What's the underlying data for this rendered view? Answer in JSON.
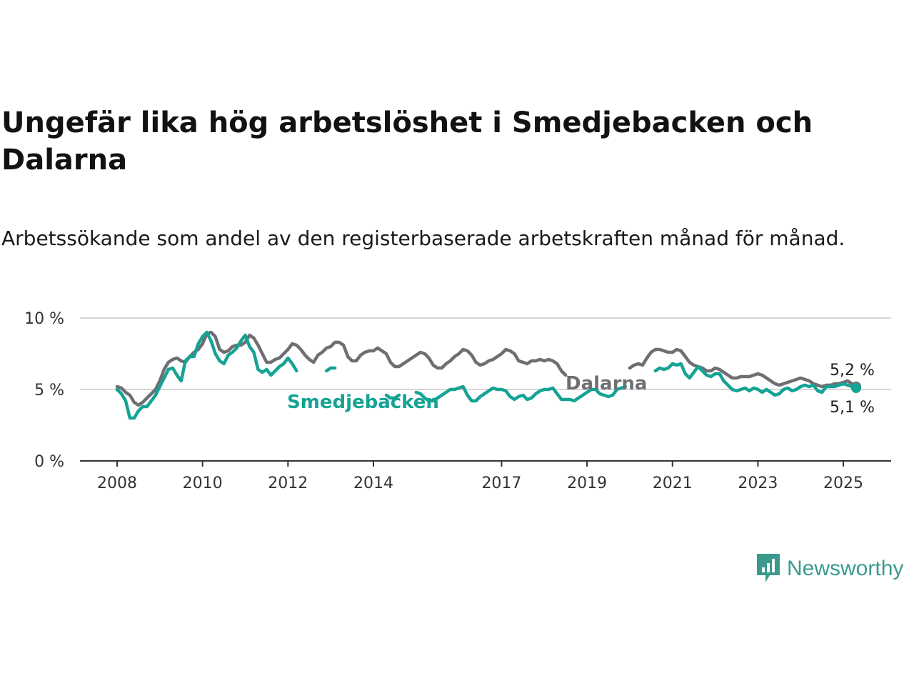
{
  "chart_data": {
    "type": "line",
    "title": "Ungefär lika hög arbetslöshet i Smedjebacken och Dalarna",
    "subtitle": "Arbetssökande som andel av den registerbaserade arbetskraften månad för månad.",
    "xlabel": "",
    "ylabel": "",
    "ylim": [
      0,
      10
    ],
    "yticks": [
      0,
      5,
      10
    ],
    "ytick_labels": [
      "0 %",
      "5 %",
      "10 %"
    ],
    "xticks": [
      2008,
      2010,
      2012,
      2014,
      2017,
      2019,
      2021,
      2023,
      2025
    ],
    "xtick_labels": [
      "2008",
      "2010",
      "2012",
      "2014",
      "2017",
      "2019",
      "2021",
      "2023",
      "2025"
    ],
    "xlim": [
      2008,
      2025.35
    ],
    "grid": true,
    "legend": "inline",
    "series": [
      {
        "name": "Dalarna",
        "color": "#6e6e73",
        "end_label": "5,2 %",
        "points": [
          [
            2008.0,
            5.2
          ],
          [
            2008.1,
            5.1
          ],
          [
            2008.2,
            4.8
          ],
          [
            2008.3,
            4.6
          ],
          [
            2008.4,
            4.1
          ],
          [
            2008.5,
            3.9
          ],
          [
            2008.6,
            4.1
          ],
          [
            2008.7,
            4.4
          ],
          [
            2008.8,
            4.7
          ],
          [
            2008.9,
            5.0
          ],
          [
            2009.0,
            5.6
          ],
          [
            2009.1,
            6.4
          ],
          [
            2009.2,
            6.9
          ],
          [
            2009.3,
            7.1
          ],
          [
            2009.4,
            7.2
          ],
          [
            2009.5,
            7.0
          ],
          [
            2009.6,
            6.9
          ],
          [
            2009.7,
            7.3
          ],
          [
            2009.8,
            7.6
          ],
          [
            2009.9,
            7.8
          ],
          [
            2010.0,
            8.2
          ],
          [
            2010.1,
            8.9
          ],
          [
            2010.2,
            9.0
          ],
          [
            2010.3,
            8.7
          ],
          [
            2010.4,
            7.8
          ],
          [
            2010.5,
            7.6
          ],
          [
            2010.6,
            7.7
          ],
          [
            2010.7,
            8.0
          ],
          [
            2010.8,
            8.1
          ],
          [
            2010.9,
            8.1
          ],
          [
            2011.0,
            8.3
          ],
          [
            2011.1,
            8.8
          ],
          [
            2011.2,
            8.6
          ],
          [
            2011.3,
            8.1
          ],
          [
            2011.4,
            7.5
          ],
          [
            2011.5,
            6.9
          ],
          [
            2011.6,
            6.9
          ],
          [
            2011.7,
            7.1
          ],
          [
            2011.8,
            7.2
          ],
          [
            2011.9,
            7.5
          ],
          [
            2012.0,
            7.8
          ],
          [
            2012.1,
            8.2
          ],
          [
            2012.2,
            8.1
          ],
          [
            2012.3,
            7.8
          ],
          [
            2012.4,
            7.4
          ],
          [
            2012.5,
            7.1
          ],
          [
            2012.6,
            6.9
          ],
          [
            2012.7,
            7.4
          ],
          [
            2012.8,
            7.6
          ],
          [
            2012.9,
            7.9
          ],
          [
            2013.0,
            8.0
          ],
          [
            2013.1,
            8.3
          ],
          [
            2013.2,
            8.3
          ],
          [
            2013.3,
            8.1
          ],
          [
            2013.4,
            7.3
          ],
          [
            2013.5,
            7.0
          ],
          [
            2013.6,
            7.0
          ],
          [
            2013.7,
            7.4
          ],
          [
            2013.8,
            7.6
          ],
          [
            2013.9,
            7.7
          ],
          [
            2014.0,
            7.7
          ],
          [
            2014.1,
            7.9
          ],
          [
            2014.2,
            7.7
          ],
          [
            2014.3,
            7.5
          ],
          [
            2014.4,
            6.9
          ],
          [
            2014.5,
            6.6
          ],
          [
            2014.6,
            6.6
          ],
          [
            2014.7,
            6.8
          ],
          [
            2014.8,
            7.0
          ],
          [
            2014.9,
            7.2
          ],
          [
            2015.0,
            7.4
          ],
          [
            2015.1,
            7.6
          ],
          [
            2015.2,
            7.5
          ],
          [
            2015.3,
            7.2
          ],
          [
            2015.4,
            6.7
          ],
          [
            2015.5,
            6.5
          ],
          [
            2015.6,
            6.5
          ],
          [
            2015.7,
            6.8
          ],
          [
            2015.8,
            7.0
          ],
          [
            2015.9,
            7.3
          ],
          [
            2016.0,
            7.5
          ],
          [
            2016.1,
            7.8
          ],
          [
            2016.2,
            7.7
          ],
          [
            2016.3,
            7.4
          ],
          [
            2016.4,
            6.9
          ],
          [
            2016.5,
            6.7
          ],
          [
            2016.6,
            6.8
          ],
          [
            2016.7,
            7.0
          ],
          [
            2016.8,
            7.1
          ],
          [
            2016.9,
            7.3
          ],
          [
            2017.0,
            7.5
          ],
          [
            2017.1,
            7.8
          ],
          [
            2017.2,
            7.7
          ],
          [
            2017.3,
            7.5
          ],
          [
            2017.4,
            7.0
          ],
          [
            2017.5,
            6.9
          ],
          [
            2017.6,
            6.8
          ],
          [
            2017.7,
            7.0
          ],
          [
            2017.8,
            7.0
          ],
          [
            2017.9,
            7.1
          ],
          [
            2018.0,
            7.0
          ],
          [
            2018.1,
            7.1
          ],
          [
            2018.2,
            7.0
          ],
          [
            2018.3,
            6.8
          ],
          [
            2018.4,
            6.3
          ],
          [
            2018.5,
            6.0
          ],
          [
            2020.0,
            6.5
          ],
          [
            2020.1,
            6.7
          ],
          [
            2020.2,
            6.8
          ],
          [
            2020.3,
            6.7
          ],
          [
            2020.4,
            7.2
          ],
          [
            2020.5,
            7.6
          ],
          [
            2020.6,
            7.8
          ],
          [
            2020.7,
            7.8
          ],
          [
            2020.8,
            7.7
          ],
          [
            2020.9,
            7.6
          ],
          [
            2021.0,
            7.6
          ],
          [
            2021.1,
            7.8
          ],
          [
            2021.2,
            7.7
          ],
          [
            2021.3,
            7.3
          ],
          [
            2021.4,
            6.9
          ],
          [
            2021.5,
            6.7
          ],
          [
            2021.6,
            6.6
          ],
          [
            2021.7,
            6.5
          ],
          [
            2021.8,
            6.3
          ],
          [
            2021.9,
            6.3
          ],
          [
            2022.0,
            6.5
          ],
          [
            2022.1,
            6.4
          ],
          [
            2022.2,
            6.2
          ],
          [
            2022.3,
            6.0
          ],
          [
            2022.4,
            5.8
          ],
          [
            2022.5,
            5.8
          ],
          [
            2022.6,
            5.9
          ],
          [
            2022.7,
            5.9
          ],
          [
            2022.8,
            5.9
          ],
          [
            2022.9,
            6.0
          ],
          [
            2023.0,
            6.1
          ],
          [
            2023.1,
            6.0
          ],
          [
            2023.2,
            5.8
          ],
          [
            2023.3,
            5.6
          ],
          [
            2023.4,
            5.4
          ],
          [
            2023.5,
            5.3
          ],
          [
            2023.6,
            5.4
          ],
          [
            2023.7,
            5.5
          ],
          [
            2023.8,
            5.6
          ],
          [
            2023.9,
            5.7
          ],
          [
            2024.0,
            5.8
          ],
          [
            2024.1,
            5.7
          ],
          [
            2024.2,
            5.6
          ],
          [
            2024.3,
            5.4
          ],
          [
            2024.4,
            5.3
          ],
          [
            2024.5,
            5.2
          ],
          [
            2024.6,
            5.3
          ],
          [
            2024.7,
            5.3
          ],
          [
            2024.8,
            5.4
          ],
          [
            2024.9,
            5.4
          ],
          [
            2025.0,
            5.5
          ],
          [
            2025.1,
            5.6
          ],
          [
            2025.2,
            5.4
          ],
          [
            2025.3,
            5.2
          ]
        ]
      },
      {
        "name": "Smedjebacken",
        "color": "#14a394",
        "end_label": "5,1 %",
        "points": [
          [
            2008.0,
            5.0
          ],
          [
            2008.1,
            4.7
          ],
          [
            2008.2,
            4.2
          ],
          [
            2008.3,
            3.0
          ],
          [
            2008.4,
            3.0
          ],
          [
            2008.5,
            3.5
          ],
          [
            2008.6,
            3.8
          ],
          [
            2008.7,
            3.8
          ],
          [
            2008.8,
            4.2
          ],
          [
            2008.9,
            4.6
          ],
          [
            2009.0,
            5.2
          ],
          [
            2009.1,
            5.8
          ],
          [
            2009.2,
            6.4
          ],
          [
            2009.3,
            6.5
          ],
          [
            2009.4,
            6.0
          ],
          [
            2009.5,
            5.6
          ],
          [
            2009.6,
            7.0
          ],
          [
            2009.7,
            7.3
          ],
          [
            2009.8,
            7.3
          ],
          [
            2009.9,
            8.2
          ],
          [
            2010.0,
            8.7
          ],
          [
            2010.1,
            9.0
          ],
          [
            2010.2,
            8.4
          ],
          [
            2010.3,
            7.5
          ],
          [
            2010.4,
            7.0
          ],
          [
            2010.5,
            6.8
          ],
          [
            2010.6,
            7.4
          ],
          [
            2010.7,
            7.6
          ],
          [
            2010.8,
            7.9
          ],
          [
            2010.9,
            8.4
          ],
          [
            2011.0,
            8.8
          ],
          [
            2011.1,
            8.0
          ],
          [
            2011.2,
            7.6
          ],
          [
            2011.3,
            6.4
          ],
          [
            2011.4,
            6.2
          ],
          [
            2011.5,
            6.4
          ],
          [
            2011.6,
            6.0
          ],
          [
            2011.7,
            6.3
          ],
          [
            2011.8,
            6.6
          ],
          [
            2011.9,
            6.8
          ],
          [
            2012.0,
            7.2
          ],
          [
            2012.1,
            6.8
          ],
          [
            2012.2,
            6.3
          ],
          [
            2012.9,
            6.3
          ],
          [
            2013.0,
            6.5
          ],
          [
            2013.1,
            6.5
          ],
          [
            2014.3,
            4.6
          ],
          [
            2014.4,
            4.4
          ],
          [
            2014.5,
            4.4
          ],
          [
            2014.6,
            4.6
          ],
          [
            2015.0,
            4.8
          ],
          [
            2015.1,
            4.7
          ],
          [
            2015.2,
            4.4
          ],
          [
            2015.3,
            4.2
          ],
          [
            2015.4,
            4.2
          ],
          [
            2015.5,
            4.4
          ],
          [
            2015.6,
            4.6
          ],
          [
            2015.7,
            4.8
          ],
          [
            2015.8,
            5.0
          ],
          [
            2015.9,
            5.0
          ],
          [
            2016.0,
            5.1
          ],
          [
            2016.1,
            5.2
          ],
          [
            2016.2,
            4.6
          ],
          [
            2016.3,
            4.2
          ],
          [
            2016.4,
            4.2
          ],
          [
            2016.5,
            4.5
          ],
          [
            2016.6,
            4.7
          ],
          [
            2016.7,
            4.9
          ],
          [
            2016.8,
            5.1
          ],
          [
            2016.9,
            5.0
          ],
          [
            2017.0,
            5.0
          ],
          [
            2017.1,
            4.9
          ],
          [
            2017.2,
            4.5
          ],
          [
            2017.3,
            4.3
          ],
          [
            2017.4,
            4.5
          ],
          [
            2017.5,
            4.6
          ],
          [
            2017.6,
            4.3
          ],
          [
            2017.7,
            4.4
          ],
          [
            2017.8,
            4.7
          ],
          [
            2017.9,
            4.9
          ],
          [
            2018.0,
            5.0
          ],
          [
            2018.1,
            5.0
          ],
          [
            2018.2,
            5.1
          ],
          [
            2018.3,
            4.7
          ],
          [
            2018.4,
            4.3
          ],
          [
            2018.5,
            4.3
          ],
          [
            2018.6,
            4.3
          ],
          [
            2018.7,
            4.2
          ],
          [
            2018.8,
            4.4
          ],
          [
            2018.9,
            4.6
          ],
          [
            2019.0,
            4.8
          ],
          [
            2019.1,
            5.0
          ],
          [
            2019.2,
            5.0
          ],
          [
            2019.3,
            4.7
          ],
          [
            2019.4,
            4.6
          ],
          [
            2019.5,
            4.5
          ],
          [
            2019.6,
            4.6
          ],
          [
            2019.7,
            5.0
          ],
          [
            2019.8,
            5.1
          ],
          [
            2019.9,
            5.2
          ],
          [
            2020.6,
            6.3
          ],
          [
            2020.7,
            6.5
          ],
          [
            2020.8,
            6.4
          ],
          [
            2020.9,
            6.5
          ],
          [
            2021.0,
            6.8
          ],
          [
            2021.1,
            6.7
          ],
          [
            2021.2,
            6.8
          ],
          [
            2021.3,
            6.1
          ],
          [
            2021.4,
            5.8
          ],
          [
            2021.5,
            6.2
          ],
          [
            2021.6,
            6.6
          ],
          [
            2021.7,
            6.3
          ],
          [
            2021.8,
            6.0
          ],
          [
            2021.9,
            5.9
          ],
          [
            2022.0,
            6.1
          ],
          [
            2022.1,
            6.1
          ],
          [
            2022.2,
            5.6
          ],
          [
            2022.3,
            5.3
          ],
          [
            2022.4,
            5.0
          ],
          [
            2022.5,
            4.9
          ],
          [
            2022.6,
            5.0
          ],
          [
            2022.7,
            5.1
          ],
          [
            2022.8,
            4.9
          ],
          [
            2022.9,
            5.1
          ],
          [
            2023.0,
            5.0
          ],
          [
            2023.1,
            4.8
          ],
          [
            2023.2,
            5.0
          ],
          [
            2023.3,
            4.8
          ],
          [
            2023.4,
            4.6
          ],
          [
            2023.5,
            4.7
          ],
          [
            2023.6,
            5.0
          ],
          [
            2023.7,
            5.1
          ],
          [
            2023.8,
            4.9
          ],
          [
            2023.9,
            5.0
          ],
          [
            2024.0,
            5.2
          ],
          [
            2024.1,
            5.3
          ],
          [
            2024.2,
            5.2
          ],
          [
            2024.3,
            5.3
          ],
          [
            2024.4,
            4.9
          ],
          [
            2024.5,
            4.8
          ],
          [
            2024.6,
            5.2
          ],
          [
            2024.7,
            5.2
          ],
          [
            2024.8,
            5.2
          ],
          [
            2024.9,
            5.3
          ],
          [
            2025.0,
            5.4
          ],
          [
            2025.1,
            5.3
          ],
          [
            2025.2,
            5.2
          ],
          [
            2025.3,
            5.1
          ]
        ]
      }
    ]
  },
  "brand": {
    "name": "Newsworthy",
    "color": "#3a9a8e"
  }
}
